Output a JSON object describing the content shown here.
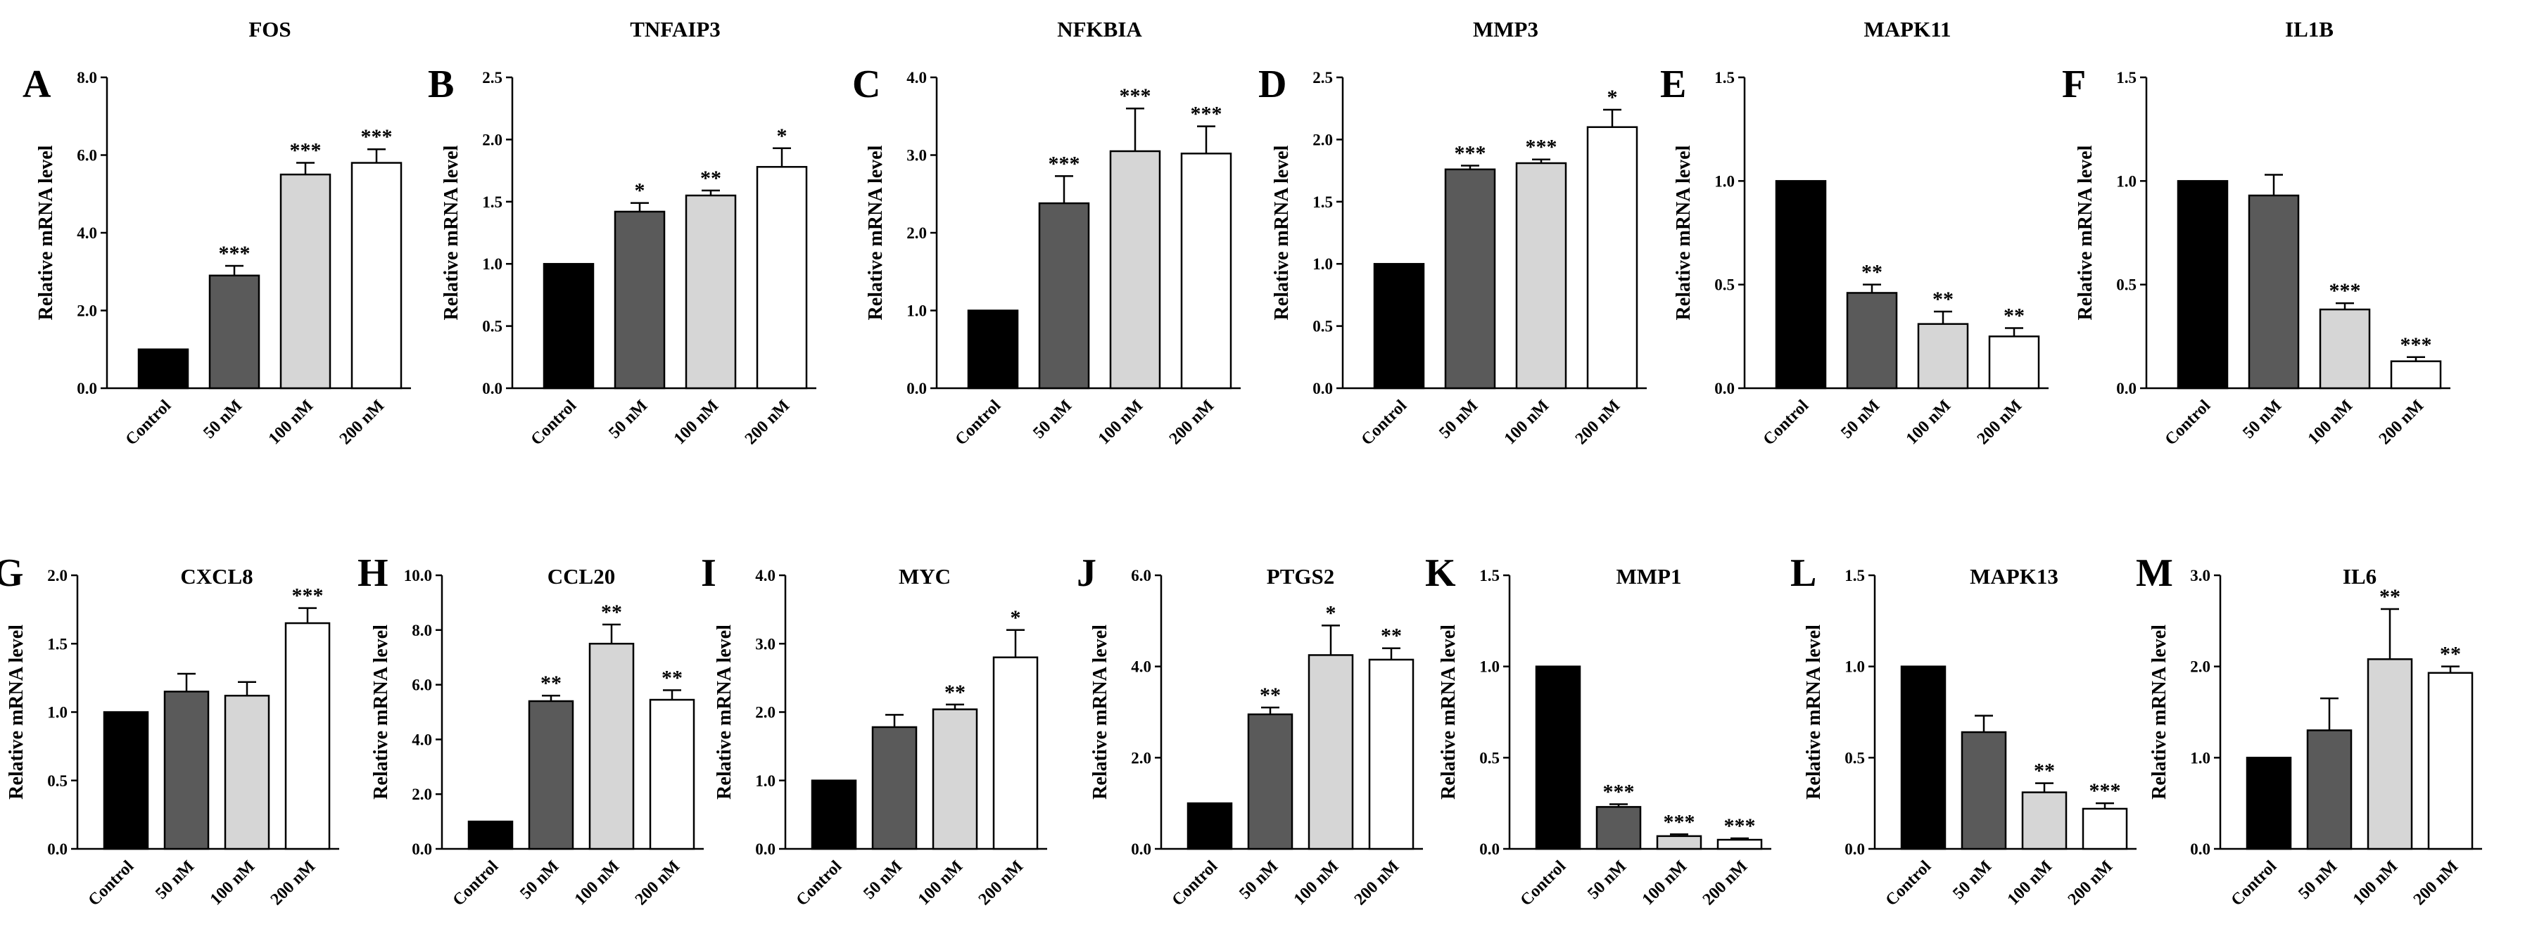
{
  "figure": {
    "ylabel": "Relative mRNA level",
    "categories": [
      "Control",
      "50 nM",
      "100 nM",
      "200 nM"
    ],
    "colors": [
      "#000000",
      "#5a5a5a",
      "#d6d6d6",
      "#ffffff"
    ]
  },
  "chart_data": [
    {
      "letter": "A",
      "title": "FOS",
      "type": "bar",
      "categories": [
        "Control",
        "50 nM",
        "100 nM",
        "200 nM"
      ],
      "values": [
        1.0,
        2.9,
        5.5,
        5.8
      ],
      "errors": [
        0,
        0.25,
        0.3,
        0.35
      ],
      "significance": [
        "",
        "***",
        "***",
        "***"
      ],
      "ylim": [
        0,
        8
      ],
      "yticks": [
        "0.0",
        "2.0",
        "4.0",
        "6.0",
        "8.0"
      ],
      "ylabel": "Relative mRNA level"
    },
    {
      "letter": "B",
      "title": "TNFAIP3",
      "type": "bar",
      "categories": [
        "Control",
        "50 nM",
        "100 nM",
        "200 nM"
      ],
      "values": [
        1.0,
        1.42,
        1.55,
        1.78
      ],
      "errors": [
        0,
        0.07,
        0.04,
        0.15
      ],
      "significance": [
        "",
        "*",
        "**",
        "*"
      ],
      "ylim": [
        0,
        2.5
      ],
      "yticks": [
        "0.0",
        "0.5",
        "1.0",
        "1.5",
        "2.0",
        "2.5"
      ],
      "ylabel": "Relative mRNA level"
    },
    {
      "letter": "C",
      "title": "NFKBIA",
      "type": "bar",
      "categories": [
        "Control",
        "50 nM",
        "100 nM",
        "200 nM"
      ],
      "values": [
        1.0,
        2.38,
        3.05,
        3.02
      ],
      "errors": [
        0,
        0.35,
        0.55,
        0.35
      ],
      "significance": [
        "",
        "***",
        "***",
        "***"
      ],
      "ylim": [
        0,
        4
      ],
      "yticks": [
        "0.0",
        "1.0",
        "2.0",
        "3.0",
        "4.0"
      ],
      "ylabel": "Relative mRNA level"
    },
    {
      "letter": "D",
      "title": "MMP3",
      "type": "bar",
      "categories": [
        "Control",
        "50 nM",
        "100 nM",
        "200 nM"
      ],
      "values": [
        1.0,
        1.76,
        1.81,
        2.1
      ],
      "errors": [
        0,
        0.03,
        0.03,
        0.14
      ],
      "significance": [
        "",
        "***",
        "***",
        "*"
      ],
      "ylim": [
        0,
        2.5
      ],
      "yticks": [
        "0.0",
        "0.5",
        "1.0",
        "1.5",
        "2.0",
        "2.5"
      ],
      "ylabel": "Relative mRNA level"
    },
    {
      "letter": "E",
      "title": "MAPK11",
      "type": "bar",
      "categories": [
        "Control",
        "50 nM",
        "100 nM",
        "200 nM"
      ],
      "values": [
        1.0,
        0.46,
        0.31,
        0.25
      ],
      "errors": [
        0,
        0.04,
        0.06,
        0.04
      ],
      "significance": [
        "",
        "**",
        "**",
        "**"
      ],
      "ylim": [
        0,
        1.5
      ],
      "yticks": [
        "0.0",
        "0.5",
        "1.0",
        "1.5"
      ],
      "ylabel": "Relative mRNA level"
    },
    {
      "letter": "F",
      "title": "IL1B",
      "type": "bar",
      "categories": [
        "Control",
        "50 nM",
        "100 nM",
        "200 nM"
      ],
      "values": [
        1.0,
        0.93,
        0.38,
        0.13
      ],
      "errors": [
        0,
        0.1,
        0.03,
        0.02
      ],
      "significance": [
        "",
        "",
        "***",
        "***"
      ],
      "ylim": [
        0,
        1.5
      ],
      "yticks": [
        "0.0",
        "0.5",
        "1.0",
        "1.5"
      ],
      "ylabel": "Relative mRNA level"
    },
    {
      "letter": "G",
      "title": "CXCL8",
      "type": "bar",
      "categories": [
        "Control",
        "50 nM",
        "100 nM",
        "200 nM"
      ],
      "values": [
        1.0,
        1.15,
        1.12,
        1.65
      ],
      "errors": [
        0,
        0.13,
        0.1,
        0.11
      ],
      "significance": [
        "",
        "",
        "",
        "***"
      ],
      "ylim": [
        0,
        2
      ],
      "yticks": [
        "0.0",
        "0.5",
        "1.0",
        "1.5",
        "2.0"
      ],
      "ylabel": "Relative mRNA level"
    },
    {
      "letter": "H",
      "title": "CCL20",
      "type": "bar",
      "categories": [
        "Control",
        "50 nM",
        "100 nM",
        "200 nM"
      ],
      "values": [
        1.0,
        5.4,
        7.5,
        5.45
      ],
      "errors": [
        0,
        0.2,
        0.7,
        0.35
      ],
      "significance": [
        "",
        "**",
        "**",
        "**"
      ],
      "ylim": [
        0,
        10
      ],
      "yticks": [
        "0.0",
        "2.0",
        "4.0",
        "6.0",
        "8.0",
        "10.0"
      ],
      "ylabel": "Relative mRNA level"
    },
    {
      "letter": "I",
      "title": "MYC",
      "type": "bar",
      "categories": [
        "Control",
        "50 nM",
        "100 nM",
        "200 nM"
      ],
      "values": [
        1.0,
        1.78,
        2.04,
        2.8
      ],
      "errors": [
        0,
        0.18,
        0.07,
        0.4
      ],
      "significance": [
        "",
        "",
        "**",
        "*"
      ],
      "ylim": [
        0,
        4
      ],
      "yticks": [
        "0.0",
        "1.0",
        "2.0",
        "3.0",
        "4.0"
      ],
      "ylabel": "Relative mRNA level"
    },
    {
      "letter": "J",
      "title": "PTGS2",
      "type": "bar",
      "categories": [
        "Control",
        "50 nM",
        "100 nM",
        "200 nM"
      ],
      "values": [
        1.0,
        2.95,
        4.25,
        4.15
      ],
      "errors": [
        0,
        0.15,
        0.65,
        0.25
      ],
      "significance": [
        "",
        "**",
        "*",
        "**"
      ],
      "ylim": [
        0,
        6
      ],
      "yticks": [
        "0.0",
        "2.0",
        "4.0",
        "6.0"
      ],
      "ylabel": "Relative mRNA level"
    },
    {
      "letter": "K",
      "title": "MMP1",
      "type": "bar",
      "categories": [
        "Control",
        "50 nM",
        "100 nM",
        "200 nM"
      ],
      "values": [
        1.0,
        0.23,
        0.07,
        0.05
      ],
      "errors": [
        0,
        0.015,
        0.01,
        0.008
      ],
      "significance": [
        "",
        "***",
        "***",
        "***"
      ],
      "ylim": [
        0,
        1.5
      ],
      "yticks": [
        "0.0",
        "0.5",
        "1.0",
        "1.5"
      ],
      "ylabel": "Relative mRNA level"
    },
    {
      "letter": "L",
      "title": "MAPK13",
      "type": "bar",
      "categories": [
        "Control",
        "50 nM",
        "100 nM",
        "200 nM"
      ],
      "values": [
        1.0,
        0.64,
        0.31,
        0.22
      ],
      "errors": [
        0,
        0.09,
        0.05,
        0.03
      ],
      "significance": [
        "",
        "",
        "**",
        "***"
      ],
      "ylim": [
        0,
        1.5
      ],
      "yticks": [
        "0.0",
        "0.5",
        "1.0",
        "1.5"
      ],
      "ylabel": "Relative mRNA level"
    },
    {
      "letter": "M",
      "title": "IL6",
      "type": "bar",
      "categories": [
        "Control",
        "50 nM",
        "100 nM",
        "200 nM"
      ],
      "values": [
        1.0,
        1.3,
        2.08,
        1.93
      ],
      "errors": [
        0,
        0.35,
        0.55,
        0.07
      ],
      "significance": [
        "",
        "",
        "**",
        "**"
      ],
      "ylim": [
        0,
        3
      ],
      "yticks": [
        "0.0",
        "1.0",
        "2.0",
        "3.0"
      ],
      "ylabel": "Relative mRNA level"
    }
  ]
}
